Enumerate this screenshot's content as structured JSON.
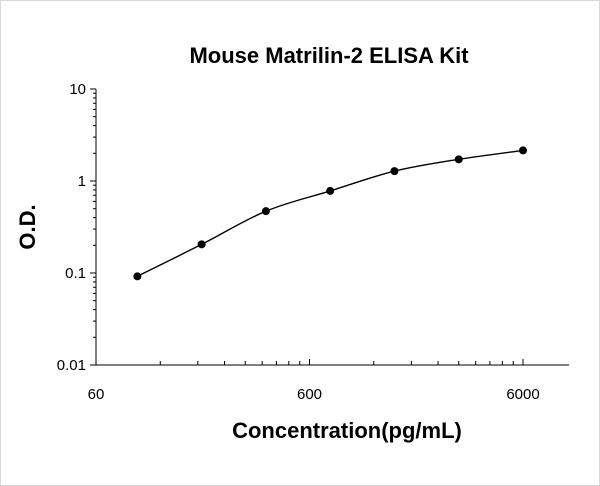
{
  "chart_data": {
    "type": "scatter",
    "title": "Mouse Matrilin-2 ELISA Kit",
    "xlabel": "Concentration(pg/mL)",
    "ylabel": "O.D.",
    "x_scale": "log",
    "y_scale": "log",
    "xlim": [
      60,
      6000
    ],
    "ylim": [
      0.01,
      10
    ],
    "x_tick_labels": [
      "60",
      "600",
      "6000"
    ],
    "y_tick_labels": [
      "10",
      "1",
      "0.1",
      "0.01"
    ],
    "grid": false,
    "legend": "none",
    "series": [
      {
        "x": [
          93.75,
          187.5,
          375,
          750,
          1500,
          3000,
          6000
        ],
        "y": [
          0.092,
          0.205,
          0.47,
          0.78,
          1.28,
          1.72,
          2.15
        ]
      }
    ],
    "fit_curve": true,
    "colors": {
      "marker": "#000000",
      "curve": "#000000",
      "background": "#ffffff"
    }
  }
}
